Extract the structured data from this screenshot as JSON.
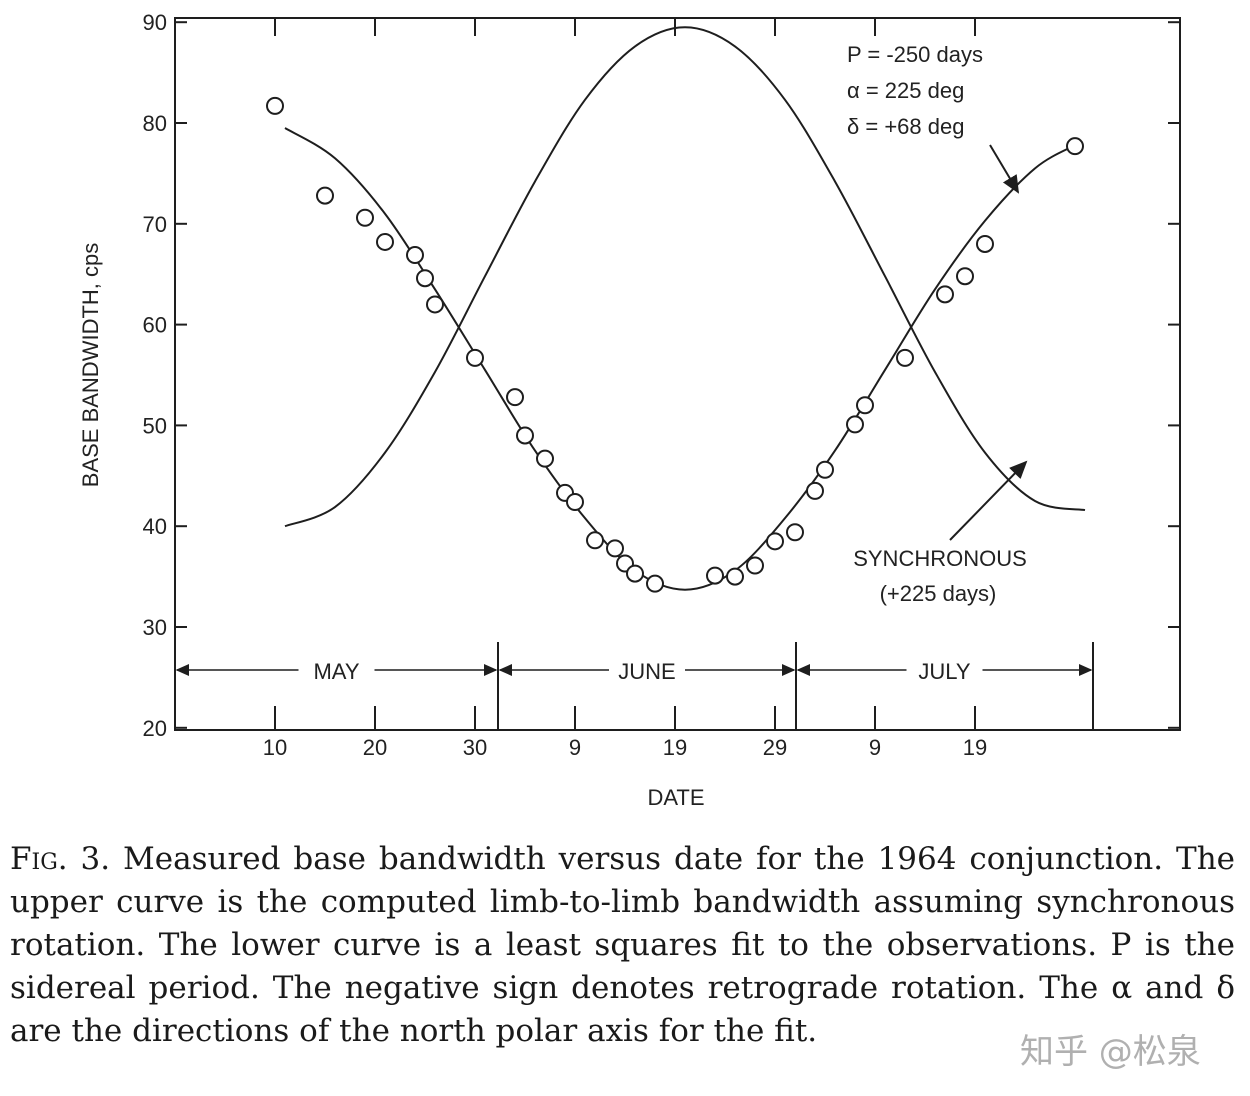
{
  "chart_data": {
    "type": "scatter",
    "title": "",
    "xlabel": "DATE",
    "ylabel": "BASE BANDWIDTH, cps",
    "xlim": [
      0,
      100.5
    ],
    "ylim": [
      20,
      90
    ],
    "x_units": "day count from May 1 (May 1 = 1)",
    "yticks": [
      20,
      30,
      40,
      50,
      60,
      70,
      80,
      90
    ],
    "xticks": [
      {
        "x": 10,
        "label": "10"
      },
      {
        "x": 20,
        "label": "20"
      },
      {
        "x": 30,
        "label": "30"
      },
      {
        "x": 40,
        "label": "9"
      },
      {
        "x": 50,
        "label": "19"
      },
      {
        "x": 60,
        "label": "29"
      },
      {
        "x": 70,
        "label": "9"
      },
      {
        "x": 80,
        "label": "19"
      }
    ],
    "months": [
      {
        "label": "MAY",
        "start": 0,
        "end": 32.3
      },
      {
        "label": "JUNE",
        "start": 32.3,
        "end": 62.1
      },
      {
        "label": "JULY",
        "start": 62.1,
        "end": 91.8
      }
    ],
    "series": [
      {
        "name": "Observations",
        "kind": "points",
        "x": [
          10,
          15,
          19,
          21,
          24,
          25,
          26,
          30,
          34,
          35,
          37,
          39,
          40,
          42,
          44,
          45,
          46,
          48,
          54,
          56,
          58,
          60,
          62,
          64,
          65,
          68,
          69,
          73,
          77,
          79,
          81,
          90
        ],
        "y": [
          81.7,
          72.8,
          70.6,
          68.2,
          66.9,
          64.6,
          62.0,
          56.7,
          52.8,
          49.0,
          46.7,
          43.3,
          42.4,
          38.6,
          37.8,
          36.3,
          35.3,
          34.3,
          35.1,
          35.0,
          36.1,
          38.5,
          39.4,
          43.5,
          45.6,
          50.1,
          52.0,
          56.7,
          63.0,
          64.8,
          68.0,
          77.7
        ]
      },
      {
        "name": "Least squares fit (P = -250 days)",
        "kind": "line",
        "x": [
          11,
          16,
          21,
          26,
          31,
          36,
          41,
          46,
          51,
          56,
          61,
          66,
          71,
          76,
          81,
          86,
          90
        ],
        "y": [
          79.5,
          76.5,
          71.0,
          63.5,
          55.5,
          47.5,
          40.8,
          35.6,
          33.7,
          35.6,
          40.8,
          47.5,
          55.5,
          63.5,
          70.3,
          75.5,
          77.8
        ]
      },
      {
        "name": "Synchronous (+225 days)",
        "kind": "line",
        "x": [
          11,
          16,
          21,
          26,
          31,
          36,
          41,
          46,
          51,
          56,
          61,
          66,
          71,
          76,
          81,
          86,
          91
        ],
        "y": [
          40.0,
          41.9,
          47.3,
          55.3,
          64.8,
          74.2,
          82.3,
          87.6,
          89.5,
          87.6,
          82.3,
          74.2,
          64.8,
          55.3,
          47.3,
          42.5,
          41.6
        ]
      }
    ],
    "annotations": {
      "params": [
        "P = -250 days",
        "α =  225 deg",
        "δ = +68 deg"
      ],
      "synchronous": [
        "SYNCHRONOUS",
        "(+225 days)"
      ]
    },
    "colors": {
      "ink": "#1e1e1e"
    }
  },
  "caption": {
    "fig": "Fig. 3.",
    "text": "Measured base bandwidth versus date for the 1964 conjunction. The upper curve is the computed limb-to-limb bandwidth assuming synchronous rotation. The lower curve is a least squares fit to the observations. P is the sidereal period. The negative sign denotes retrograde rotation. The α and δ are the directions of the north polar axis for the fit."
  },
  "watermark": "知乎 @松泉"
}
